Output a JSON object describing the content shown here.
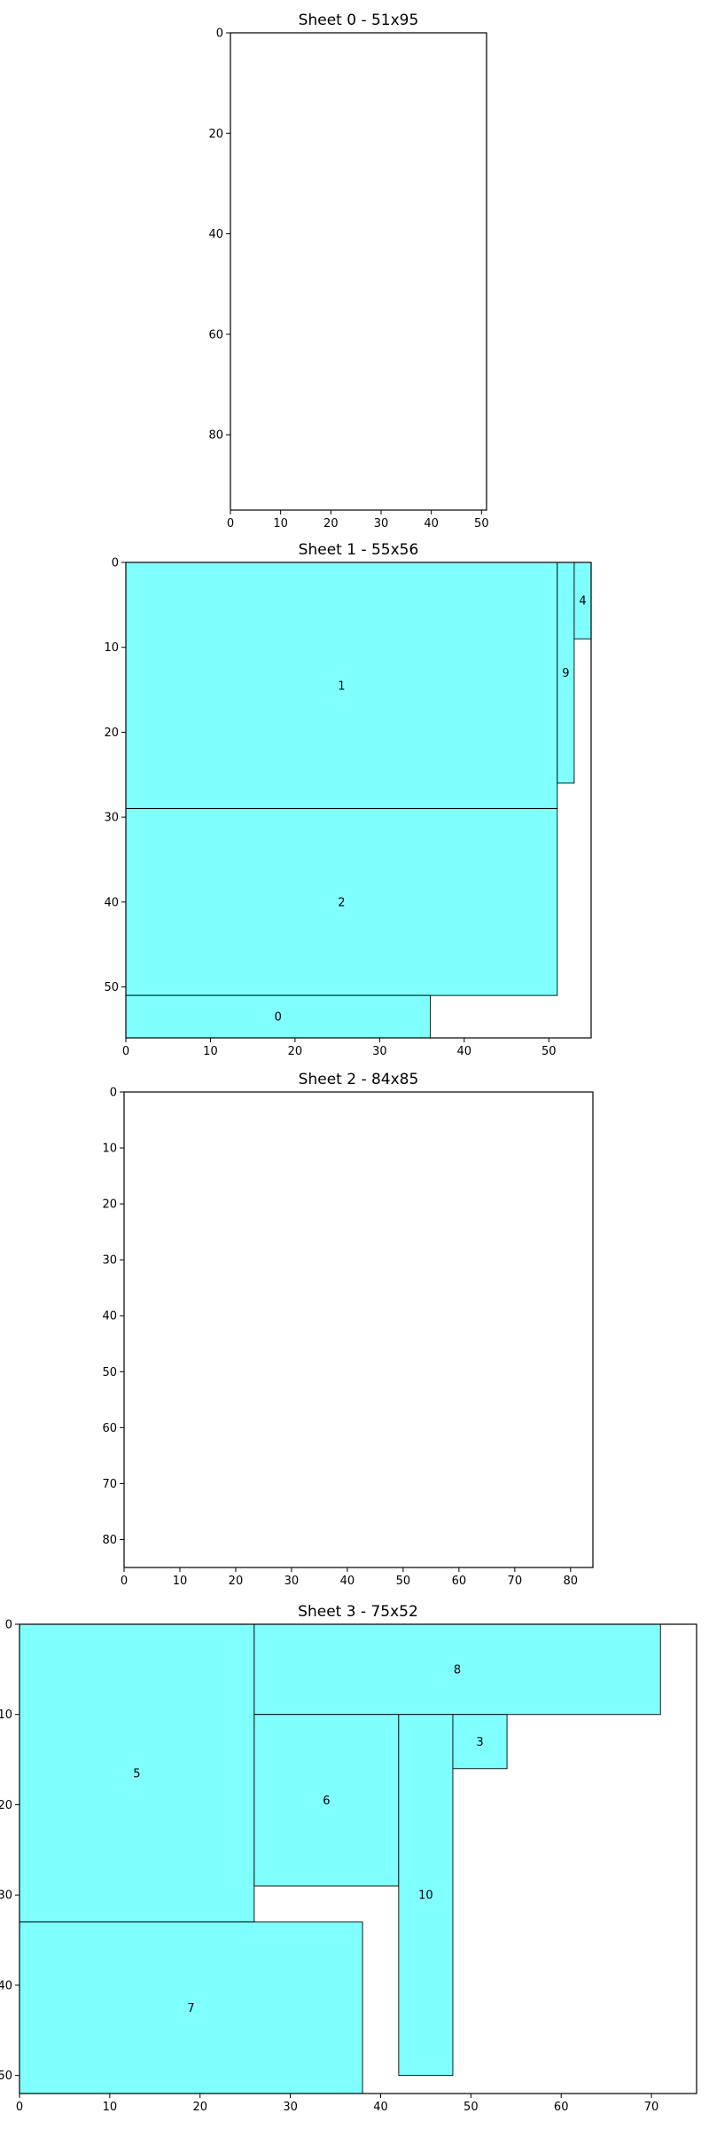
{
  "piece_color": "#80ffff",
  "chart_data": [
    {
      "type": "rect-packing",
      "title": "Sheet 0 - 51x95",
      "sheet": {
        "width": 51,
        "height": 95
      },
      "xlim": [
        0,
        51
      ],
      "ylim": [
        0,
        95
      ],
      "xticks": [
        0,
        10,
        20,
        30,
        40,
        50
      ],
      "yticks": [
        0,
        20,
        40,
        60,
        80
      ],
      "pieces": []
    },
    {
      "type": "rect-packing",
      "title": "Sheet 1 - 55x56",
      "sheet": {
        "width": 55,
        "height": 56
      },
      "xlim": [
        0,
        55
      ],
      "ylim": [
        0,
        56
      ],
      "xticks": [
        0,
        10,
        20,
        30,
        40,
        50
      ],
      "yticks": [
        0,
        10,
        20,
        30,
        40,
        50
      ],
      "pieces": [
        {
          "id": "1",
          "x": 0,
          "y": 0,
          "w": 51,
          "h": 29
        },
        {
          "id": "2",
          "x": 0,
          "y": 29,
          "w": 51,
          "h": 22
        },
        {
          "id": "0",
          "x": 0,
          "y": 51,
          "w": 36,
          "h": 5
        },
        {
          "id": "9",
          "x": 51,
          "y": 0,
          "w": 2,
          "h": 26
        },
        {
          "id": "4",
          "x": 53,
          "y": 0,
          "w": 2,
          "h": 9
        }
      ]
    },
    {
      "type": "rect-packing",
      "title": "Sheet 2 - 84x85",
      "sheet": {
        "width": 84,
        "height": 85
      },
      "xlim": [
        0,
        84
      ],
      "ylim": [
        0,
        85
      ],
      "xticks": [
        0,
        10,
        20,
        30,
        40,
        50,
        60,
        70,
        80
      ],
      "yticks": [
        0,
        10,
        20,
        30,
        40,
        50,
        60,
        70,
        80
      ],
      "pieces": []
    },
    {
      "type": "rect-packing",
      "title": "Sheet 3 - 75x52",
      "sheet": {
        "width": 75,
        "height": 52
      },
      "xlim": [
        0,
        75
      ],
      "ylim": [
        0,
        52
      ],
      "xticks": [
        0,
        10,
        20,
        30,
        40,
        50,
        60,
        70
      ],
      "yticks": [
        0,
        10,
        20,
        30,
        40,
        50
      ],
      "pieces": [
        {
          "id": "5",
          "x": 0,
          "y": 0,
          "w": 26,
          "h": 33
        },
        {
          "id": "8",
          "x": 26,
          "y": 0,
          "w": 45,
          "h": 10
        },
        {
          "id": "6",
          "x": 26,
          "y": 10,
          "w": 16,
          "h": 19
        },
        {
          "id": "10",
          "x": 42,
          "y": 10,
          "w": 6,
          "h": 40
        },
        {
          "id": "3",
          "x": 48,
          "y": 10,
          "w": 6,
          "h": 6
        },
        {
          "id": "7",
          "x": 0,
          "y": 33,
          "w": 38,
          "h": 19
        }
      ]
    }
  ]
}
